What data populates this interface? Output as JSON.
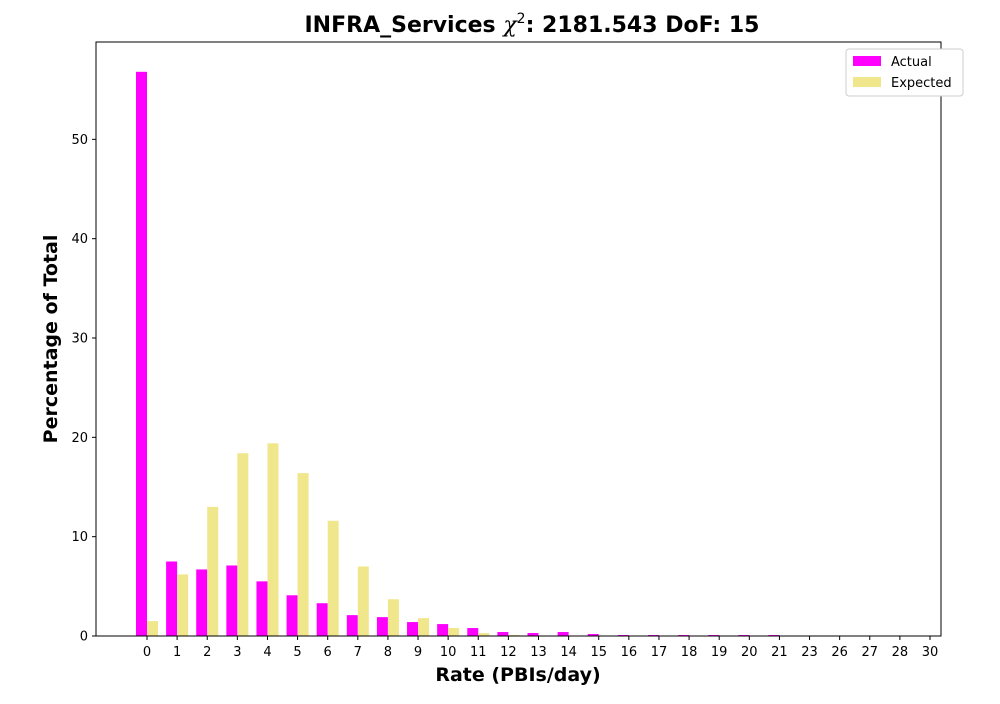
{
  "chart_data": {
    "type": "bar",
    "title_main": "INFRA_Services ",
    "title_chi": "χ",
    "title_sup": "2",
    "title_rest": ": 2181.543 DoF: 15",
    "xlabel": "Rate (PBIs/day)",
    "ylabel": "Percentage of Total",
    "ylim": [
      0,
      59.8
    ],
    "yticks": [
      0,
      10,
      20,
      30,
      40,
      50
    ],
    "categories": [
      "0",
      "1",
      "2",
      "3",
      "4",
      "5",
      "6",
      "7",
      "8",
      "9",
      "10",
      "11",
      "12",
      "13",
      "14",
      "15",
      "16",
      "17",
      "18",
      "19",
      "20",
      "21",
      "23",
      "26",
      "27",
      "28",
      "30"
    ],
    "series": [
      {
        "name": "Actual",
        "color": "#ff00ff",
        "values": [
          56.8,
          7.5,
          6.7,
          7.1,
          5.5,
          4.1,
          3.3,
          2.1,
          1.9,
          1.4,
          1.2,
          0.8,
          0.4,
          0.3,
          0.4,
          0.2,
          0.1,
          0.1,
          0.1,
          0.1,
          0.1,
          0.1,
          0.05,
          0.05,
          0.05,
          0.05,
          0.05
        ]
      },
      {
        "name": "Expected",
        "color": "#f0e68c",
        "values": [
          1.5,
          6.2,
          13.0,
          18.4,
          19.4,
          16.4,
          11.6,
          7.0,
          3.7,
          1.8,
          0.8,
          0.3,
          0.1,
          0.05,
          0.02,
          0.01,
          0.0,
          0.0,
          0.0,
          0.0,
          0.0,
          0.0,
          0.0,
          0.0,
          0.0,
          0.0,
          0.0
        ]
      }
    ],
    "legend": "top-right",
    "grid": false
  }
}
